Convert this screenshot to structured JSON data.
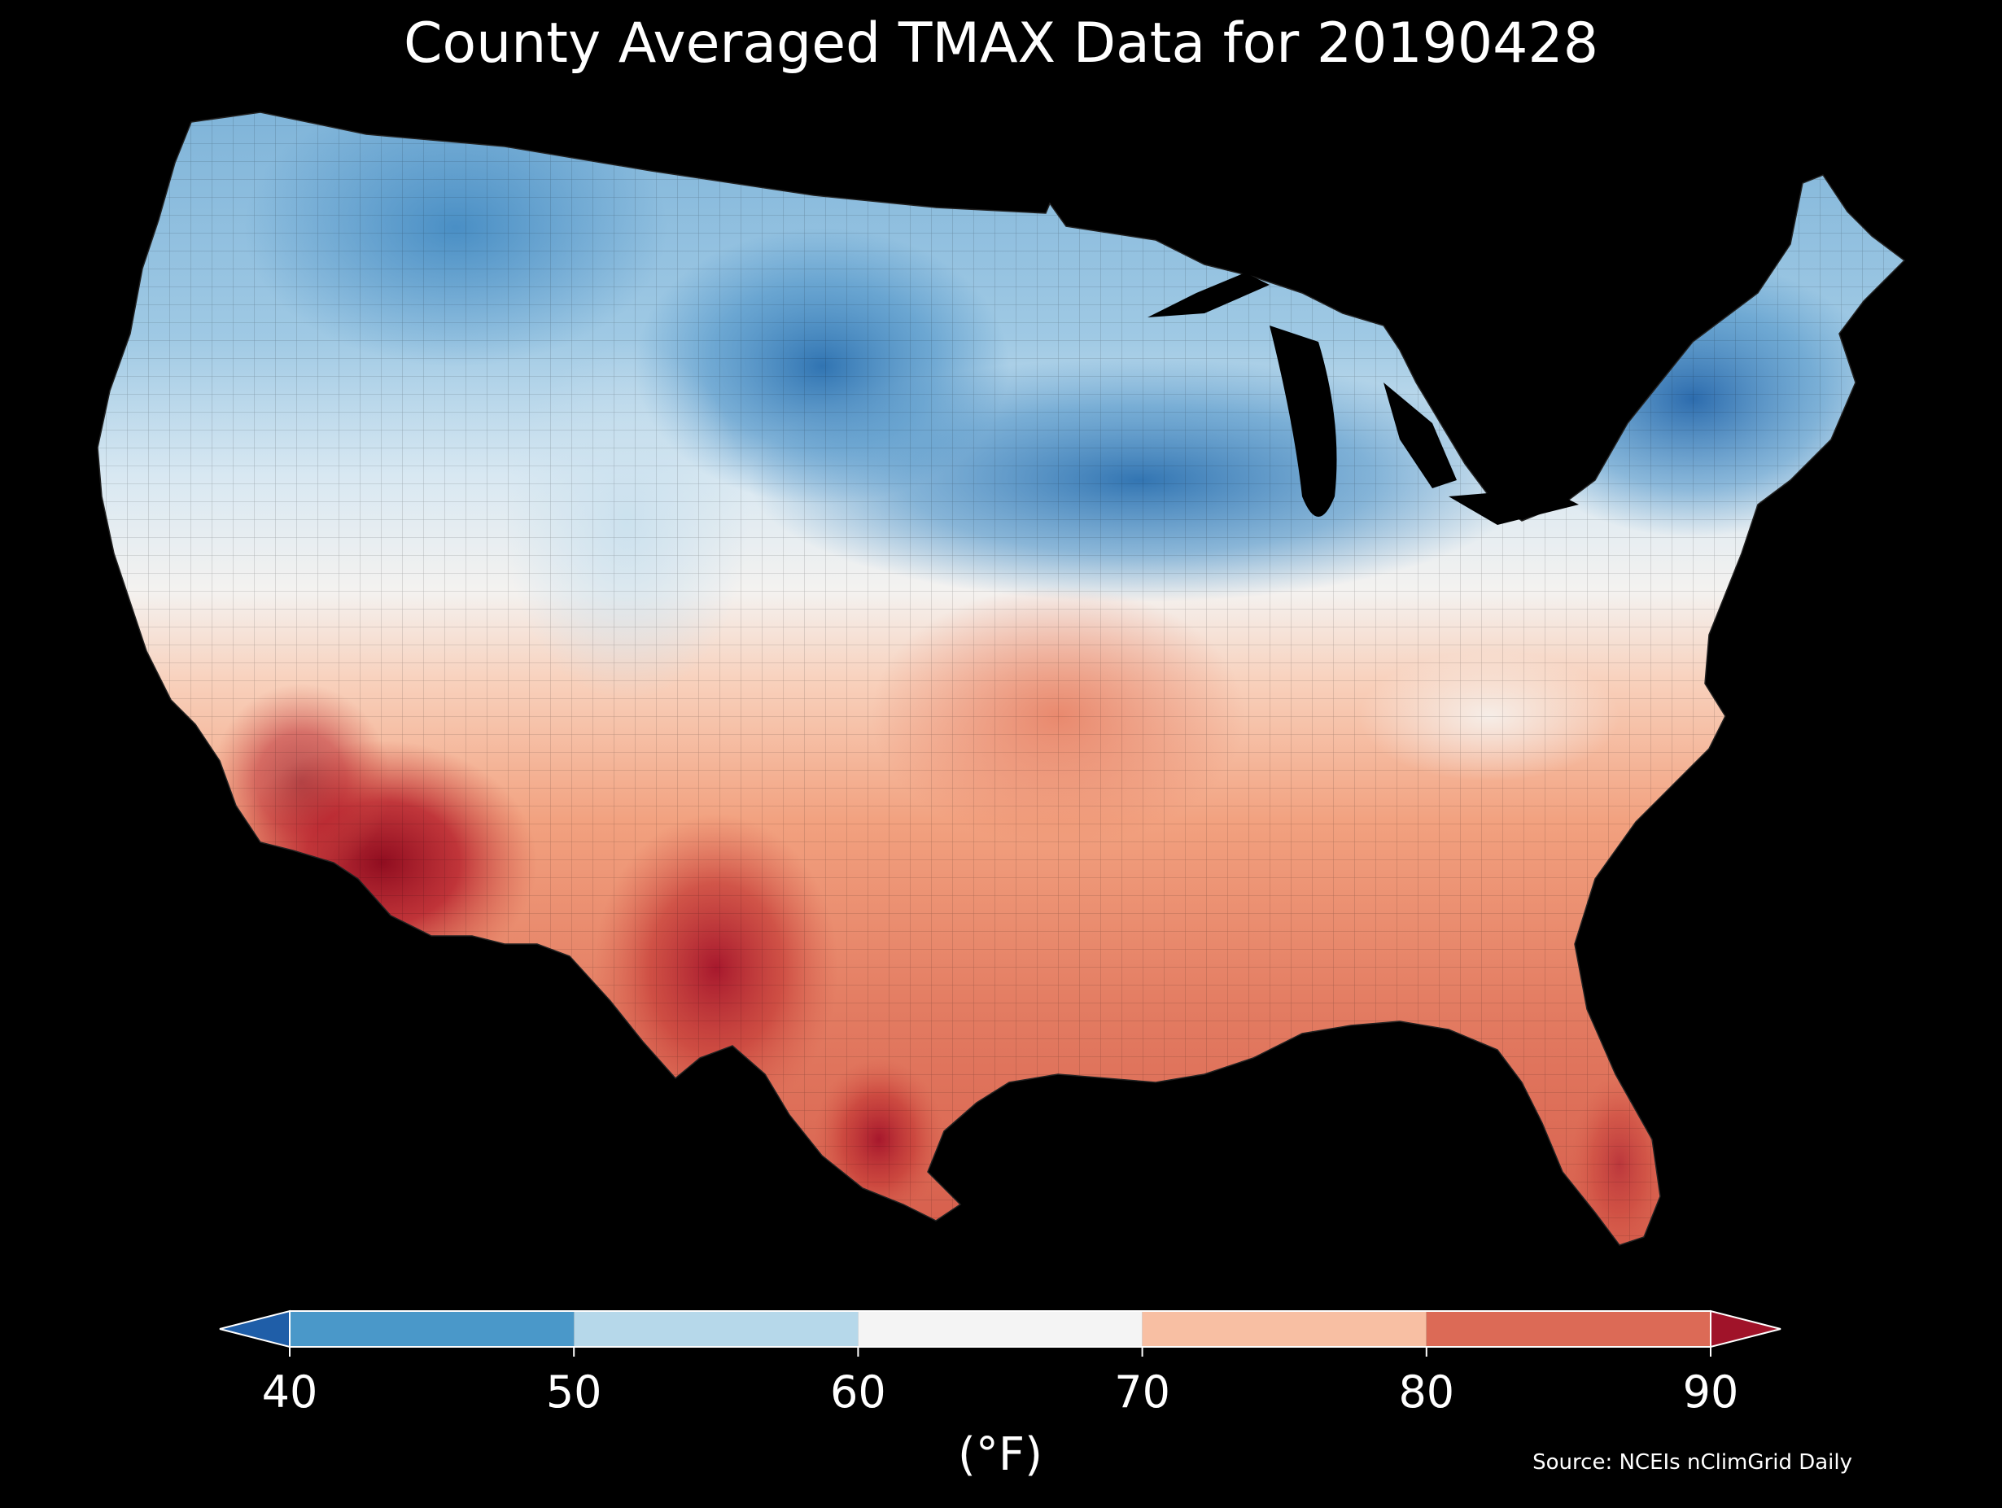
{
  "title": "County Averaged TMAX Data for 20190428",
  "colorbar": {
    "unit_label": "(°F)",
    "ticks": [
      "40",
      "50",
      "60",
      "70",
      "80",
      "90"
    ],
    "bins": [
      {
        "from": 40,
        "to": 50,
        "color": "#4a98c9"
      },
      {
        "from": 50,
        "to": 60,
        "color": "#b6d8ea"
      },
      {
        "from": 60,
        "to": 70,
        "color": "#f4f4f4"
      },
      {
        "from": 70,
        "to": 80,
        "color": "#f8bfa3"
      },
      {
        "from": 80,
        "to": 90,
        "color": "#dc6a56"
      }
    ],
    "under_color": "#1f5ea8",
    "over_color": "#a01329"
  },
  "source": "Source: NCEIs nClimGrid Daily",
  "colors": {
    "background": "#000000",
    "cold": "#2b72b4",
    "cool": "#a8cfe5",
    "neutral": "#f4f2f0",
    "warm": "#f4a582",
    "hot": "#d6604d",
    "very_hot": "#a50f15"
  }
}
